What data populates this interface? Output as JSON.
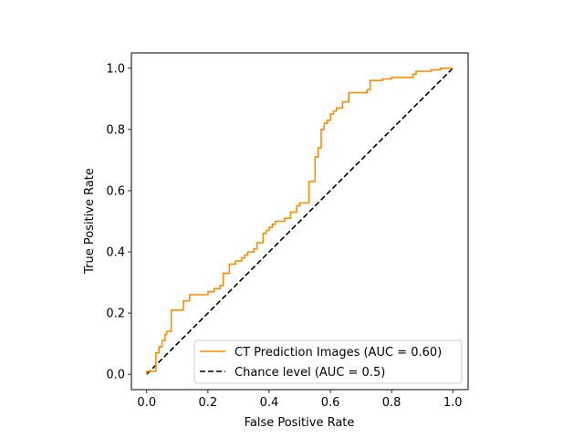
{
  "chart_data": {
    "type": "line",
    "title": "",
    "xlabel": "False Positive Rate",
    "ylabel": "True Positive Rate",
    "xlim": [
      -0.05,
      1.05
    ],
    "ylim": [
      -0.05,
      1.05
    ],
    "xticks": [
      0.0,
      0.2,
      0.4,
      0.6,
      0.8,
      1.0
    ],
    "yticks": [
      0.0,
      0.2,
      0.4,
      0.6,
      0.8,
      1.0
    ],
    "xtick_labels": [
      "0.0",
      "0.2",
      "0.4",
      "0.6",
      "0.8",
      "1.0"
    ],
    "ytick_labels": [
      "0.0",
      "0.2",
      "0.4",
      "0.6",
      "0.8",
      "1.0"
    ],
    "grid": false,
    "legend_position": "lower-right",
    "series": [
      {
        "name": "CT Prediction Images (AUC = 0.60)",
        "color": "#ff8c00",
        "style": "solid",
        "step": true,
        "x": [
          0.0,
          0.0,
          0.03,
          0.03,
          0.04,
          0.04,
          0.05,
          0.05,
          0.06,
          0.06,
          0.065,
          0.065,
          0.08,
          0.08,
          0.09,
          0.09,
          0.12,
          0.12,
          0.14,
          0.14,
          0.2,
          0.2,
          0.22,
          0.22,
          0.24,
          0.24,
          0.25,
          0.25,
          0.27,
          0.27,
          0.29,
          0.29,
          0.31,
          0.31,
          0.32,
          0.32,
          0.33,
          0.33,
          0.35,
          0.35,
          0.36,
          0.36,
          0.38,
          0.38,
          0.39,
          0.39,
          0.4,
          0.4,
          0.41,
          0.41,
          0.42,
          0.42,
          0.45,
          0.45,
          0.47,
          0.47,
          0.49,
          0.49,
          0.5,
          0.5,
          0.53,
          0.53,
          0.55,
          0.55,
          0.56,
          0.56,
          0.57,
          0.57,
          0.58,
          0.58,
          0.59,
          0.59,
          0.6,
          0.6,
          0.61,
          0.61,
          0.62,
          0.62,
          0.64,
          0.64,
          0.66,
          0.66,
          0.72,
          0.72,
          0.73,
          0.73,
          0.77,
          0.77,
          0.8,
          0.8,
          0.87,
          0.87,
          0.88,
          0.88,
          0.93,
          0.93,
          0.96,
          0.96,
          0.99,
          0.99,
          1.0
        ],
        "y": [
          0.0,
          0.01,
          0.01,
          0.07,
          0.07,
          0.09,
          0.09,
          0.11,
          0.11,
          0.13,
          0.13,
          0.14,
          0.14,
          0.21,
          0.21,
          0.21,
          0.21,
          0.24,
          0.24,
          0.26,
          0.26,
          0.27,
          0.27,
          0.28,
          0.28,
          0.29,
          0.29,
          0.33,
          0.33,
          0.36,
          0.36,
          0.37,
          0.37,
          0.38,
          0.38,
          0.39,
          0.39,
          0.4,
          0.4,
          0.41,
          0.41,
          0.43,
          0.43,
          0.46,
          0.46,
          0.47,
          0.47,
          0.48,
          0.48,
          0.49,
          0.49,
          0.5,
          0.5,
          0.51,
          0.51,
          0.53,
          0.53,
          0.55,
          0.55,
          0.56,
          0.56,
          0.63,
          0.63,
          0.71,
          0.71,
          0.74,
          0.74,
          0.8,
          0.8,
          0.82,
          0.82,
          0.83,
          0.83,
          0.85,
          0.85,
          0.86,
          0.86,
          0.87,
          0.87,
          0.89,
          0.89,
          0.92,
          0.92,
          0.93,
          0.93,
          0.96,
          0.96,
          0.965,
          0.965,
          0.97,
          0.97,
          0.98,
          0.98,
          0.99,
          0.99,
          0.995,
          0.995,
          1.0,
          1.0,
          1.0,
          1.0
        ]
      },
      {
        "name": "Chance level (AUC = 0.5)",
        "color": "#000000",
        "style": "dashed",
        "step": false,
        "x": [
          0.0,
          1.0
        ],
        "y": [
          0.0,
          1.0
        ]
      }
    ]
  }
}
